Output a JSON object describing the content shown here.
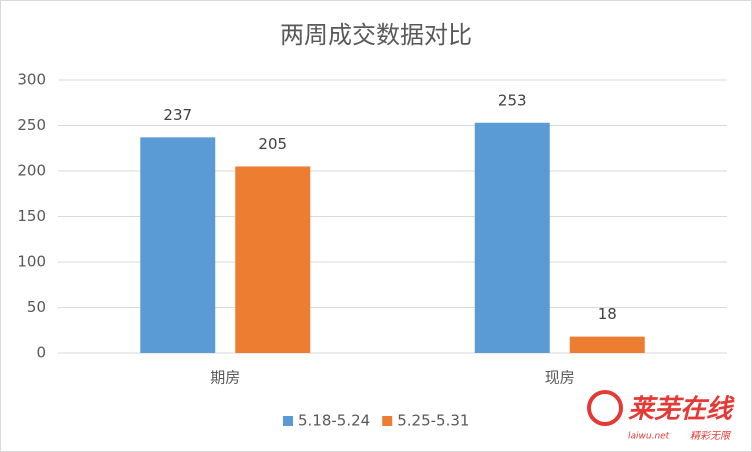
{
  "chart_data": {
    "type": "bar",
    "title": "两周成交数据对比",
    "categories": [
      "期房",
      "现房"
    ],
    "series": [
      {
        "name": "5.18-5.24",
        "color": "#5b9bd5",
        "values": [
          237,
          253
        ]
      },
      {
        "name": "5.25-5.31",
        "color": "#ed7d31",
        "values": [
          205,
          18
        ]
      }
    ],
    "ylim": [
      0,
      300
    ],
    "yticks": [
      0,
      50,
      100,
      150,
      200,
      250,
      300
    ],
    "grid": true,
    "legend": "bottom",
    "watermark": {
      "name": "莱芜在线",
      "site": "laiwu.net",
      "slogan": "精彩无限"
    }
  }
}
